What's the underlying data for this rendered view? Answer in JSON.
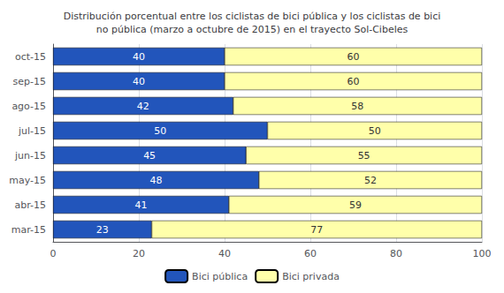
{
  "chart_data": {
    "type": "bar",
    "orientation": "horizontal",
    "stacked": true,
    "title": "Distribución porcentual entre los ciclistas de bici pública y los ciclistas de bici\nno pública (marzo a octubre de 2015) en el trayecto Sol-Cibeles",
    "categories": [
      "oct-15",
      "sep-15",
      "ago-15",
      "jul-15",
      "jun-15",
      "may-15",
      "abr-15",
      "mar-15"
    ],
    "series": [
      {
        "name": "Bici pública",
        "color": "#2255BB",
        "values": [
          40,
          40,
          42,
          50,
          45,
          48,
          41,
          23
        ]
      },
      {
        "name": "Bici privada",
        "color": "#FFFFAA",
        "values": [
          60,
          60,
          58,
          50,
          55,
          52,
          59,
          77
        ]
      }
    ],
    "xlim": [
      0,
      100
    ],
    "xticks": [
      0,
      20,
      40,
      60,
      80,
      100
    ],
    "grid": true,
    "data_labels": true,
    "legend": "bottom"
  }
}
